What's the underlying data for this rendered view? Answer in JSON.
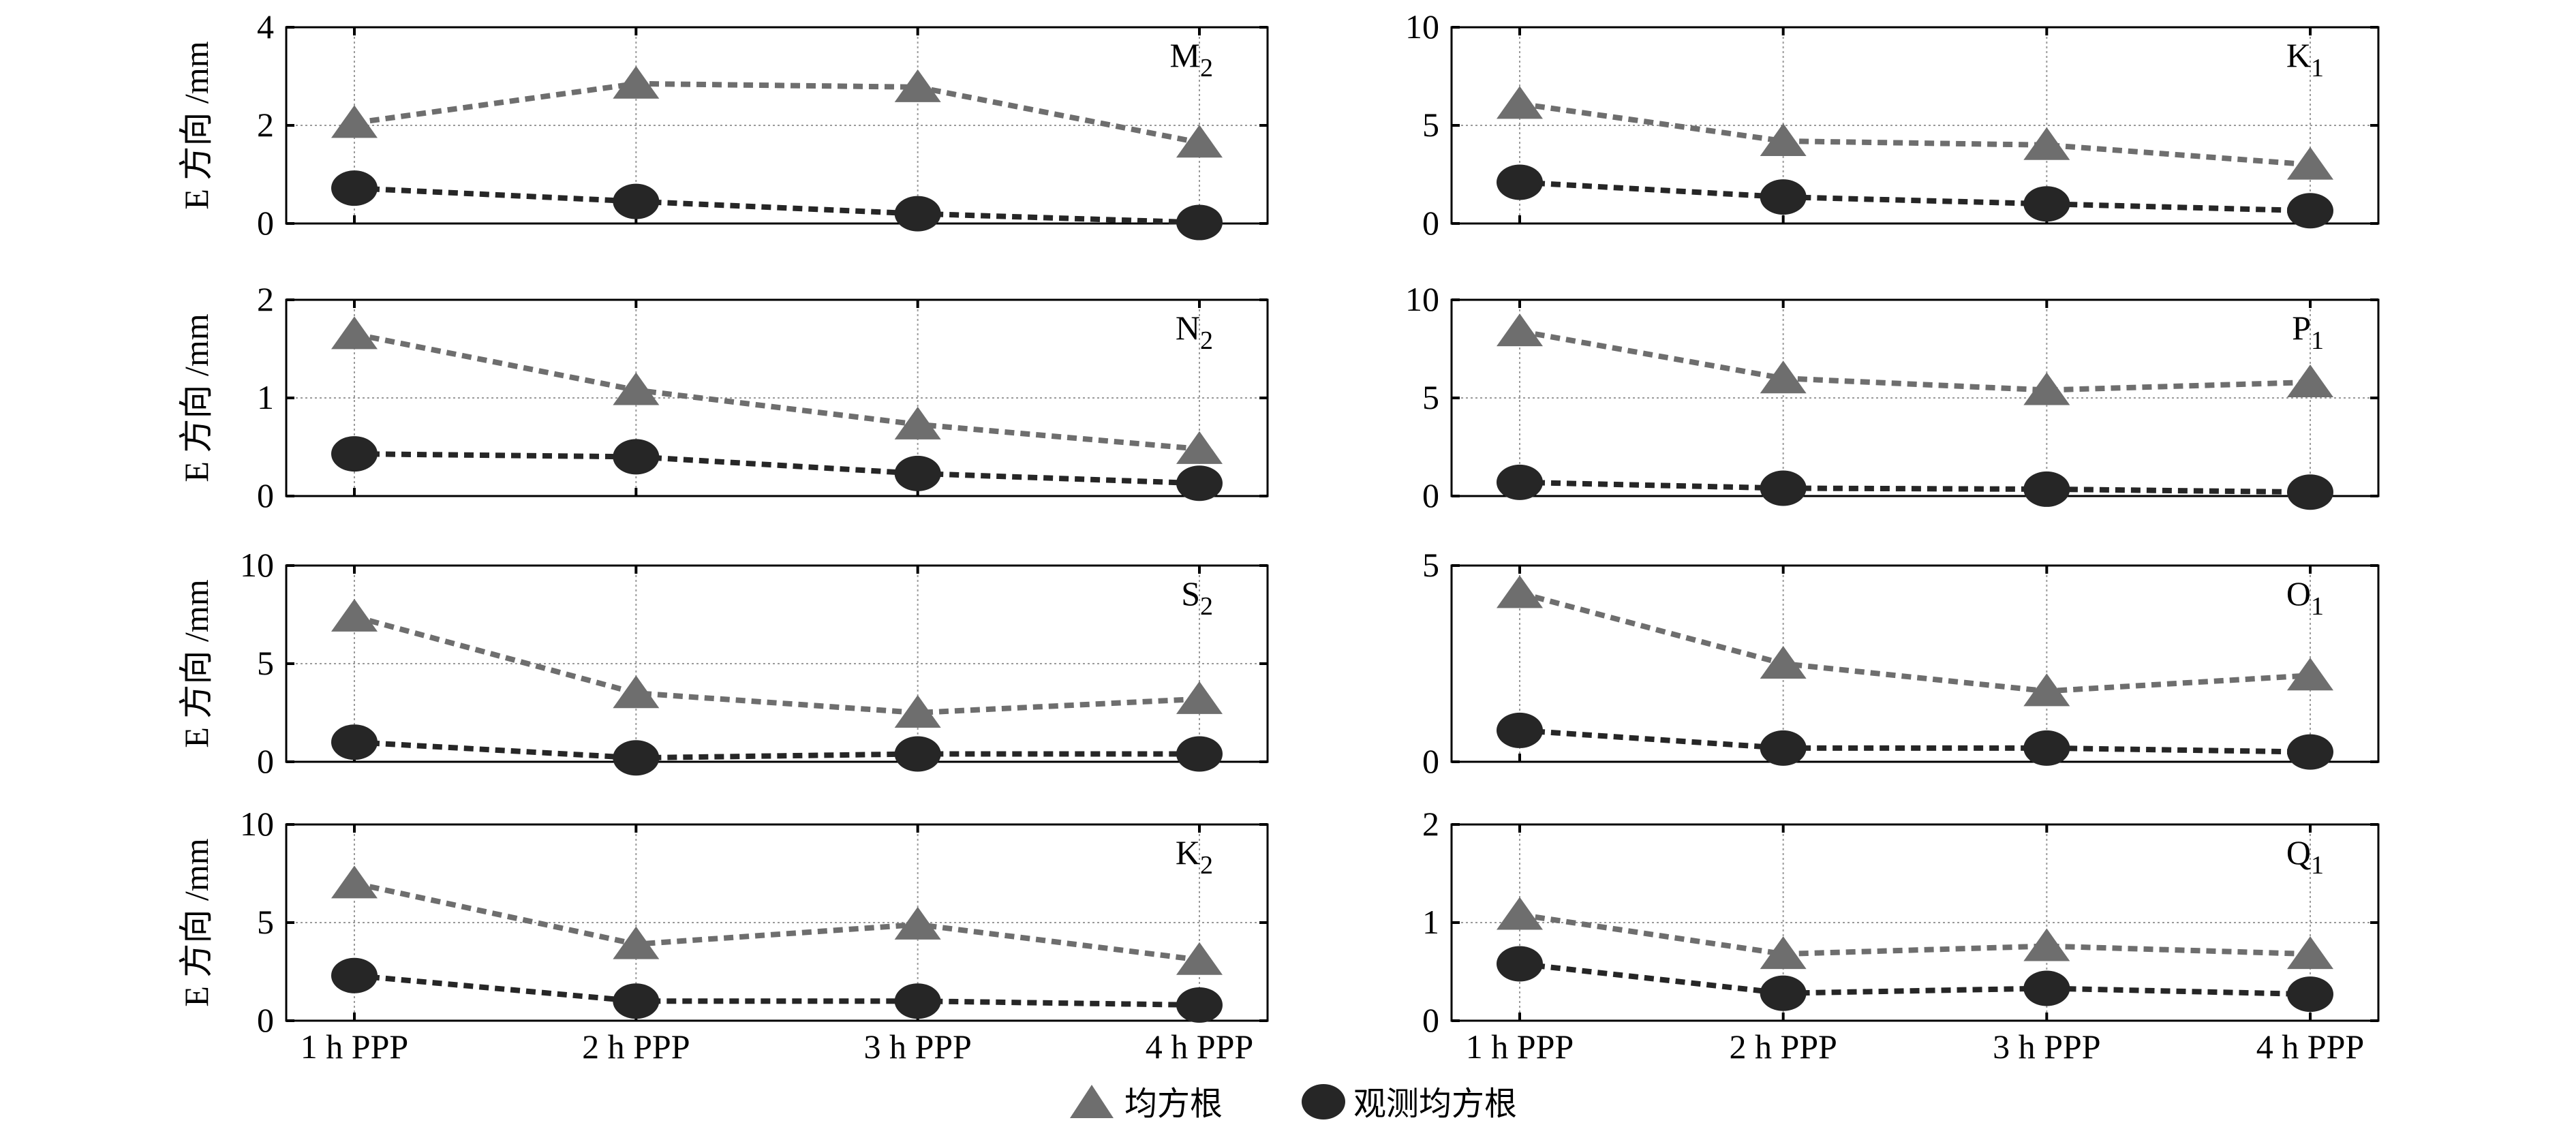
{
  "chart_data": [
    {
      "type": "line",
      "label": "M",
      "label_sub": "2",
      "ylabel": "E 方向 /mm",
      "ylim": [
        0,
        4
      ],
      "yticks": [
        "0",
        "2",
        "4"
      ],
      "x": [
        "1 h PPP",
        "2 h PPP",
        "3 h PPP",
        "4 h PPP"
      ],
      "series": [
        {
          "name": "均方根",
          "marker": "triangle",
          "values": [
            2.05,
            2.85,
            2.78,
            1.65
          ]
        },
        {
          "name": "观测均方根",
          "marker": "circle",
          "values": [
            0.72,
            0.45,
            0.2,
            0.02
          ]
        }
      ]
    },
    {
      "type": "line",
      "label": "K",
      "label_sub": "1",
      "ylabel": "",
      "ylim": [
        0,
        10
      ],
      "yticks": [
        "0",
        "5",
        "10"
      ],
      "x": [
        "1 h PPP",
        "2 h PPP",
        "3 h PPP",
        "4 h PPP"
      ],
      "series": [
        {
          "name": "均方根",
          "marker": "triangle",
          "values": [
            6.1,
            4.2,
            4.0,
            3.0
          ]
        },
        {
          "name": "观测均方根",
          "marker": "circle",
          "values": [
            2.1,
            1.35,
            1.0,
            0.65
          ]
        }
      ]
    },
    {
      "type": "line",
      "label": "N",
      "label_sub": "2",
      "ylabel": "E 方向 /mm",
      "ylim": [
        0,
        2
      ],
      "yticks": [
        "0",
        "1",
        "2"
      ],
      "x": [
        "1 h PPP",
        "2 h PPP",
        "3 h PPP",
        "4 h PPP"
      ],
      "series": [
        {
          "name": "均方根",
          "marker": "triangle",
          "values": [
            1.65,
            1.08,
            0.73,
            0.48
          ]
        },
        {
          "name": "观测均方根",
          "marker": "circle",
          "values": [
            0.43,
            0.4,
            0.23,
            0.13
          ]
        }
      ]
    },
    {
      "type": "line",
      "label": "P",
      "label_sub": "1",
      "ylabel": "",
      "ylim": [
        0,
        10
      ],
      "yticks": [
        "0",
        "5",
        "10"
      ],
      "x": [
        "1 h PPP",
        "2 h PPP",
        "3 h PPP",
        "4 h PPP"
      ],
      "series": [
        {
          "name": "均方根",
          "marker": "triangle",
          "values": [
            8.4,
            6.0,
            5.4,
            5.8
          ]
        },
        {
          "name": "观测均方根",
          "marker": "circle",
          "values": [
            0.7,
            0.4,
            0.35,
            0.2
          ]
        }
      ]
    },
    {
      "type": "line",
      "label": "S",
      "label_sub": "2",
      "ylabel": "E 方向 /mm",
      "ylim": [
        0,
        10
      ],
      "yticks": [
        "0",
        "5",
        "10"
      ],
      "x": [
        "1 h PPP",
        "2 h PPP",
        "3 h PPP",
        "4 h PPP"
      ],
      "series": [
        {
          "name": "均方根",
          "marker": "triangle",
          "values": [
            7.4,
            3.5,
            2.5,
            3.2
          ]
        },
        {
          "name": "观测均方根",
          "marker": "circle",
          "values": [
            1.0,
            0.2,
            0.4,
            0.4
          ]
        }
      ]
    },
    {
      "type": "line",
      "label": "O",
      "label_sub": "1",
      "ylabel": "",
      "ylim": [
        0,
        5
      ],
      "yticks": [
        "0",
        "5"
      ],
      "x": [
        "1 h PPP",
        "2 h PPP",
        "3 h PPP",
        "4 h PPP"
      ],
      "series": [
        {
          "name": "均方根",
          "marker": "triangle",
          "values": [
            4.3,
            2.5,
            1.8,
            2.2
          ]
        },
        {
          "name": "观测均方根",
          "marker": "circle",
          "values": [
            0.8,
            0.35,
            0.35,
            0.25
          ]
        }
      ]
    },
    {
      "type": "line",
      "label": "K",
      "label_sub": "2",
      "ylabel": "E 方向 /mm",
      "ylim": [
        0,
        10
      ],
      "yticks": [
        "0",
        "5",
        "10"
      ],
      "x": [
        "1 h PPP",
        "2 h PPP",
        "3 h PPP",
        "4 h PPP"
      ],
      "series": [
        {
          "name": "均方根",
          "marker": "triangle",
          "values": [
            7.0,
            3.9,
            4.9,
            3.1
          ]
        },
        {
          "name": "观测均方根",
          "marker": "circle",
          "values": [
            2.3,
            1.0,
            1.0,
            0.8
          ]
        }
      ]
    },
    {
      "type": "line",
      "label": "Q",
      "label_sub": "1",
      "ylabel": "",
      "ylim": [
        0,
        2
      ],
      "yticks": [
        "0",
        "1",
        "2"
      ],
      "x": [
        "1 h PPP",
        "2 h PPP",
        "3 h PPP",
        "4 h PPP"
      ],
      "series": [
        {
          "name": "均方根",
          "marker": "triangle",
          "values": [
            1.08,
            0.68,
            0.76,
            0.68
          ]
        },
        {
          "name": "观测均方根",
          "marker": "circle",
          "values": [
            0.58,
            0.28,
            0.33,
            0.27
          ]
        }
      ]
    }
  ],
  "legend": {
    "rms_label": "均方根",
    "obs_rms_label": "观测均方根"
  },
  "colors": {
    "rms": "#6e6e6e",
    "obs_rms": "#262626",
    "grid": "#9a9a9a",
    "axis": "#000000"
  }
}
